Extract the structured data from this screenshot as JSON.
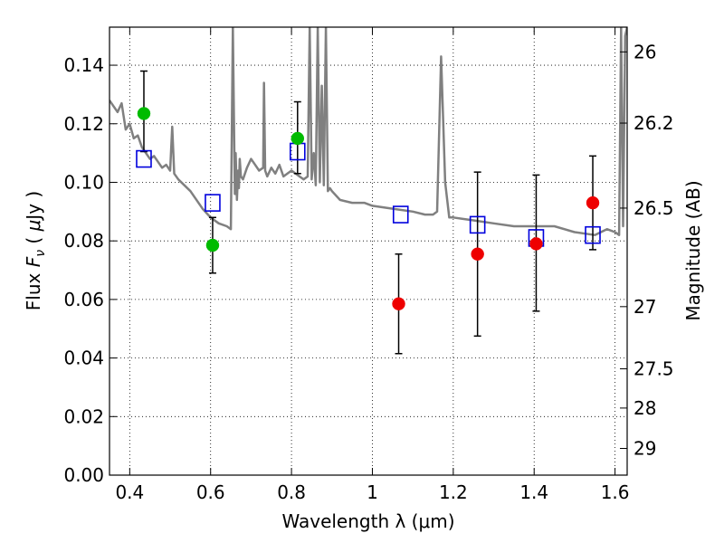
{
  "chart_data": {
    "type": "scatter",
    "xlabel": "Wavelength  λ (μm)",
    "ylabel_parts": [
      "Flux  ",
      "F",
      "ν",
      "  (  ",
      "μ",
      "Jy )"
    ],
    "right_ylabel": "Magnitude (AB)",
    "xlim": [
      0.35,
      1.63
    ],
    "ylim": [
      0.0,
      0.153
    ],
    "grid": true,
    "x_ticks": [
      {
        "value": 0.4,
        "label": "0.4"
      },
      {
        "value": 0.6,
        "label": "0.6"
      },
      {
        "value": 0.8,
        "label": "0.8"
      },
      {
        "value": 1.0,
        "label": "1"
      },
      {
        "value": 1.2,
        "label": "1.2"
      },
      {
        "value": 1.4,
        "label": "1.4"
      },
      {
        "value": 1.6,
        "label": "1.6"
      }
    ],
    "y_ticks": [
      {
        "value": 0.0,
        "label": "0.00"
      },
      {
        "value": 0.02,
        "label": "0.02"
      },
      {
        "value": 0.04,
        "label": "0.04"
      },
      {
        "value": 0.06,
        "label": "0.06"
      },
      {
        "value": 0.08,
        "label": "0.08"
      },
      {
        "value": 0.1,
        "label": "0.10"
      },
      {
        "value": 0.12,
        "label": "0.12"
      },
      {
        "value": 0.14,
        "label": "0.14"
      }
    ],
    "right_ticks": [
      {
        "mag": 26,
        "label": "26"
      },
      {
        "mag": 26.2,
        "label": "26.2"
      },
      {
        "mag": 26.5,
        "label": "26.5"
      },
      {
        "mag": 27,
        "label": "27"
      },
      {
        "mag": 27.5,
        "label": "27.5"
      },
      {
        "mag": 28,
        "label": "28"
      },
      {
        "mag": 29,
        "label": "29"
      }
    ],
    "series": [
      {
        "marker": "circle",
        "color": "#00bb00",
        "x": [
          0.435,
          0.605,
          0.815
        ],
        "y": [
          0.1235,
          0.0785,
          0.115
        ],
        "err_low": [
          0.1105,
          0.069,
          0.103
        ],
        "err_high": [
          0.138,
          0.088,
          0.1275
        ]
      },
      {
        "marker": "circle",
        "color": "#ee0000",
        "x": [
          1.065,
          1.26,
          1.405,
          1.545
        ],
        "y": [
          0.0585,
          0.0755,
          0.079,
          0.093
        ],
        "err_low": [
          0.0415,
          0.0475,
          0.056,
          0.077
        ],
        "err_high": [
          0.0755,
          0.1035,
          0.1025,
          0.109
        ]
      },
      {
        "marker": "square",
        "color": "#0000dd",
        "x": [
          0.435,
          0.605,
          0.815,
          1.07,
          1.26,
          1.405,
          1.545
        ],
        "y": [
          0.108,
          0.093,
          0.1105,
          0.089,
          0.0855,
          0.081,
          0.082
        ]
      },
      {
        "type": "line",
        "color": "#808080",
        "x": [
          0.35,
          0.37,
          0.38,
          0.39,
          0.4,
          0.41,
          0.42,
          0.43,
          0.44,
          0.45,
          0.46,
          0.47,
          0.48,
          0.49,
          0.5,
          0.505,
          0.51,
          0.52,
          0.55,
          0.58,
          0.6,
          0.62,
          0.64,
          0.65,
          0.655,
          0.66,
          0.662,
          0.665,
          0.668,
          0.67,
          0.672,
          0.675,
          0.68,
          0.69,
          0.7,
          0.71,
          0.72,
          0.73,
          0.732,
          0.735,
          0.74,
          0.75,
          0.76,
          0.77,
          0.78,
          0.79,
          0.8,
          0.81,
          0.82,
          0.83,
          0.84,
          0.845,
          0.85,
          0.855,
          0.86,
          0.865,
          0.87,
          0.875,
          0.88,
          0.885,
          0.89,
          0.895,
          0.9,
          0.92,
          0.95,
          0.98,
          1.0,
          1.05,
          1.1,
          1.13,
          1.15,
          1.16,
          1.17,
          1.18,
          1.19,
          1.2,
          1.25,
          1.3,
          1.35,
          1.4,
          1.45,
          1.5,
          1.55,
          1.58,
          1.6,
          1.61,
          1.615,
          1.62,
          1.625,
          1.63
        ],
        "y": [
          0.128,
          0.124,
          0.127,
          0.118,
          0.12,
          0.115,
          0.116,
          0.112,
          0.11,
          0.108,
          0.109,
          0.107,
          0.105,
          0.106,
          0.104,
          0.119,
          0.103,
          0.101,
          0.097,
          0.091,
          0.088,
          0.086,
          0.085,
          0.084,
          0.153,
          0.096,
          0.11,
          0.094,
          0.104,
          0.098,
          0.108,
          0.102,
          0.101,
          0.105,
          0.108,
          0.106,
          0.104,
          0.105,
          0.134,
          0.104,
          0.102,
          0.105,
          0.103,
          0.106,
          0.102,
          0.103,
          0.104,
          0.103,
          0.102,
          0.101,
          0.102,
          0.153,
          0.101,
          0.11,
          0.099,
          0.153,
          0.1,
          0.133,
          0.099,
          0.153,
          0.097,
          0.098,
          0.097,
          0.094,
          0.093,
          0.093,
          0.092,
          0.091,
          0.09,
          0.089,
          0.089,
          0.09,
          0.143,
          0.1,
          0.088,
          0.088,
          0.087,
          0.086,
          0.085,
          0.085,
          0.085,
          0.083,
          0.082,
          0.084,
          0.083,
          0.082,
          0.153,
          0.085,
          0.15,
          0.153
        ]
      }
    ]
  }
}
